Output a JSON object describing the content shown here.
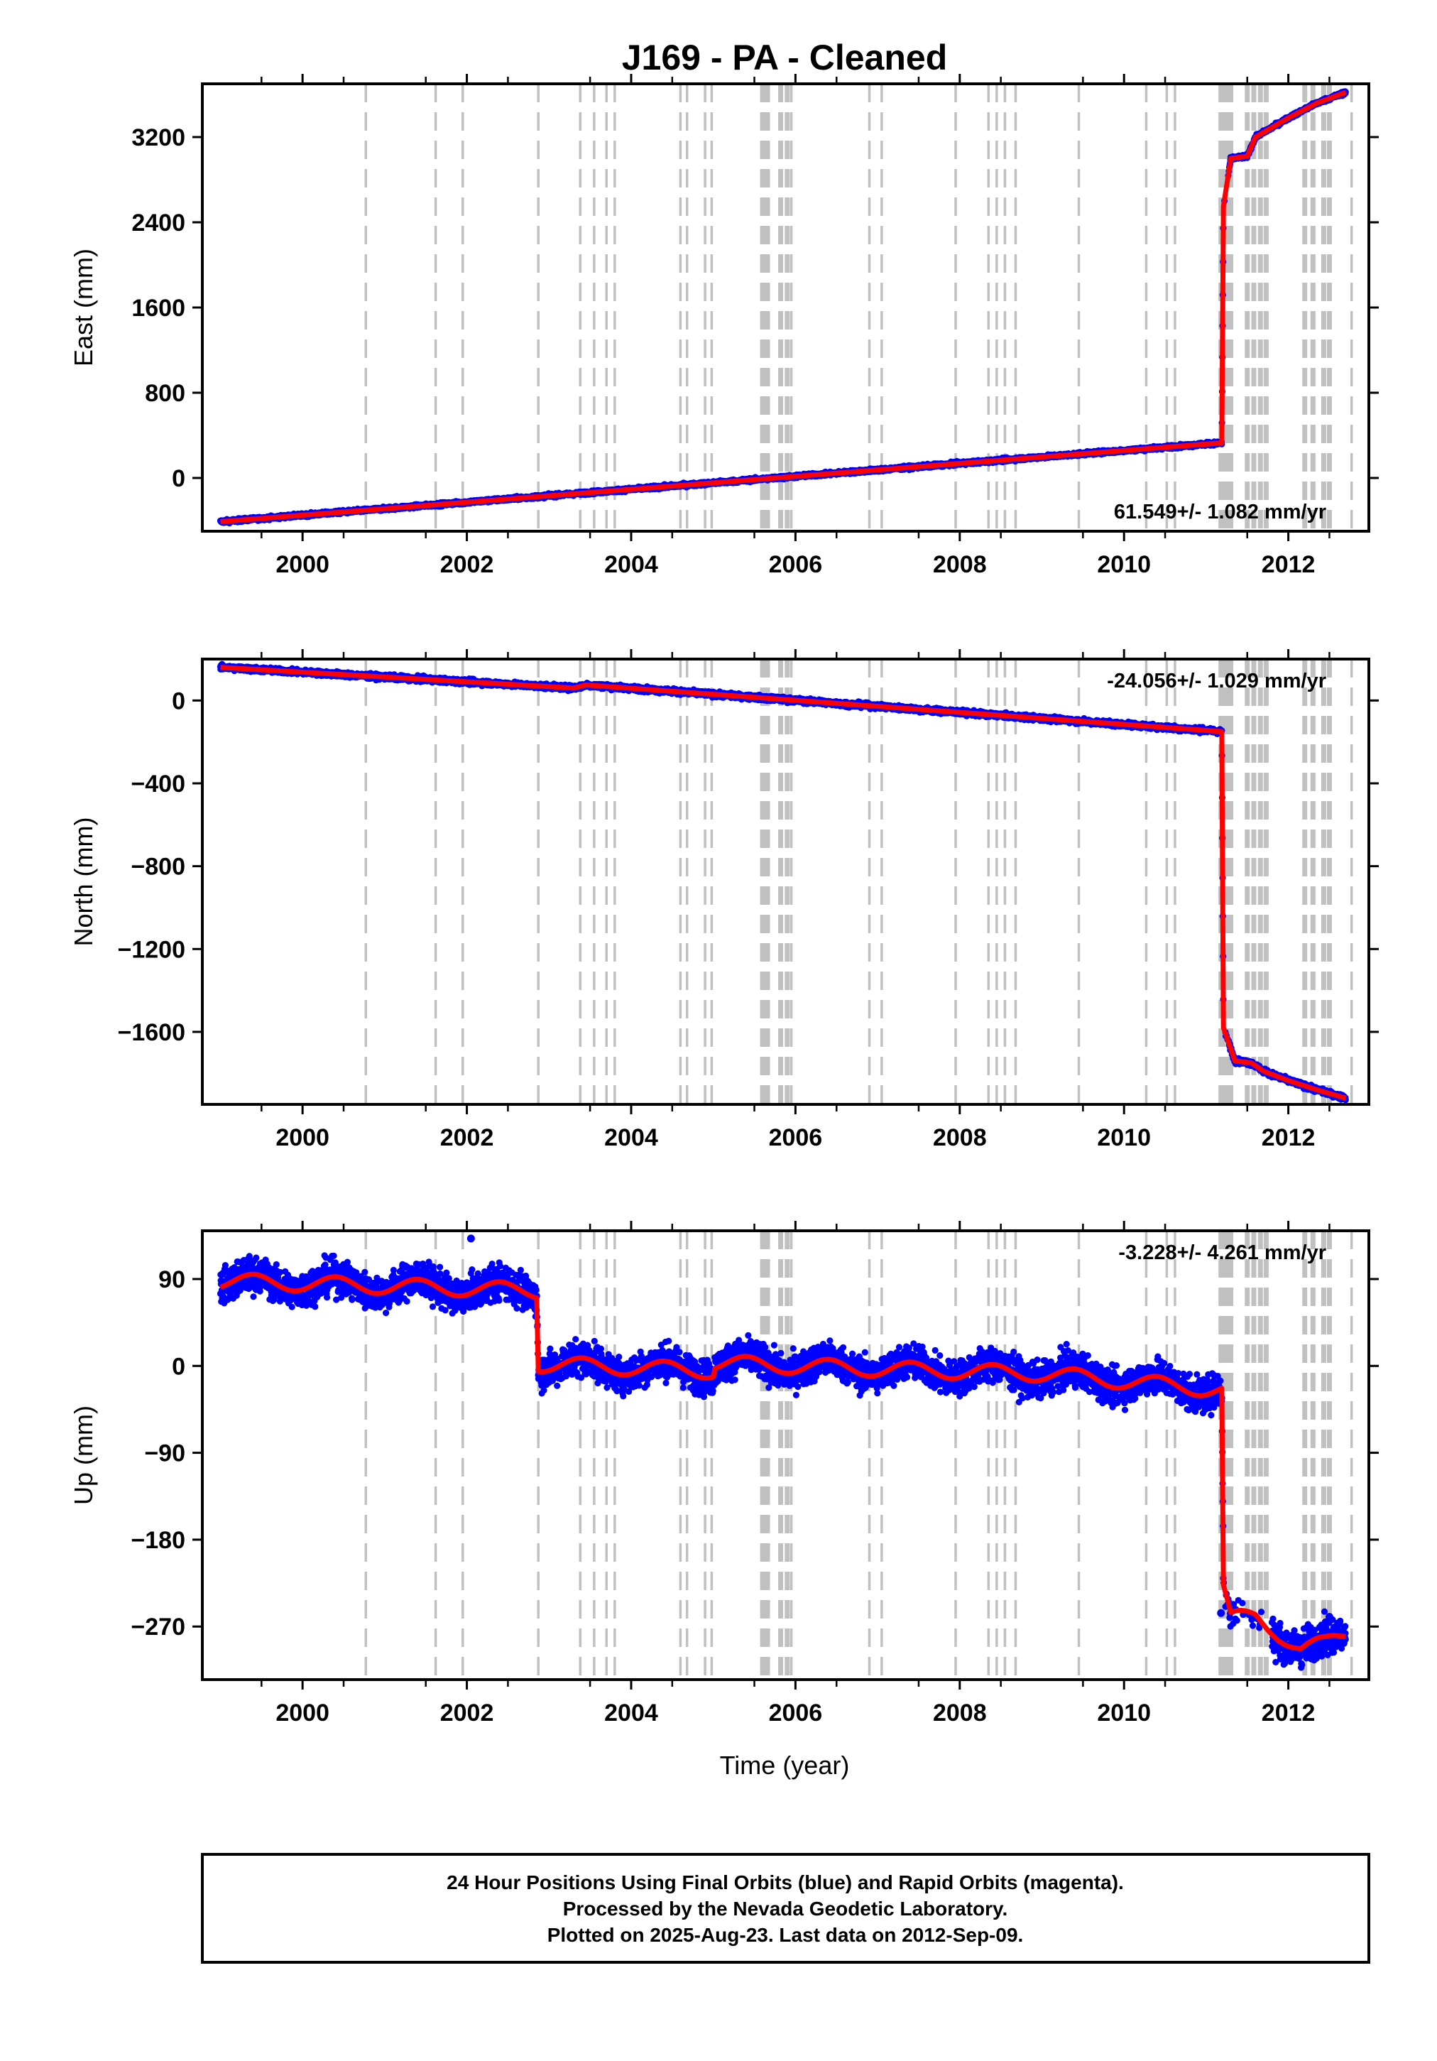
{
  "title": "J169  - PA - Cleaned",
  "xlabel": "Time (year)",
  "footer": {
    "line1": "24 Hour Positions Using Final Orbits (blue) and Rapid Orbits (magenta).",
    "line2": "Processed by the Nevada Geodetic Laboratory.",
    "line3": "Plotted on 2025-Aug-23. Last data on 2012-Sep-09."
  },
  "colors": {
    "data": "#0000ff",
    "model": "#ff0000",
    "steps": "#c0c0c0",
    "frame": "#000000"
  },
  "chart_data": [
    {
      "type": "scatter",
      "panel": "east",
      "ylabel": "East (mm)",
      "xlim": [
        1998.78,
        2012.98
      ],
      "ylim": [
        -500,
        3700
      ],
      "yticks": [
        0,
        800,
        1600,
        2400,
        3200
      ],
      "xticks": [
        2000,
        2002,
        2004,
        2006,
        2008,
        2010,
        2012
      ],
      "rate_label": "61.549+/- 1.082 mm/yr",
      "rate_placement": "bottom-right",
      "noise_mm": 8,
      "model": [
        [
          1999.0,
          -410
        ],
        [
          2011.19,
          330
        ],
        [
          2011.21,
          2550
        ],
        [
          2011.3,
          3000
        ],
        [
          2011.5,
          3020
        ],
        [
          2011.6,
          3200
        ],
        [
          2012.0,
          3380
        ],
        [
          2012.35,
          3520
        ],
        [
          2012.7,
          3620
        ]
      ],
      "trend": 61.549,
      "trend_uncertainty": 1.082
    },
    {
      "type": "scatter",
      "panel": "north",
      "ylabel": "North (mm)",
      "xlim": [
        1998.78,
        2012.98
      ],
      "ylim": [
        -1950,
        200
      ],
      "yticks": [
        0,
        -400,
        -800,
        -1200,
        -1600
      ],
      "xticks": [
        2000,
        2002,
        2004,
        2006,
        2008,
        2010,
        2012
      ],
      "rate_label": "-24.056+/- 1.029 mm/yr",
      "rate_placement": "top-right",
      "noise_mm": 6,
      "model": [
        [
          1999.0,
          160
        ],
        [
          2003.3,
          60
        ],
        [
          2003.45,
          75
        ],
        [
          2011.19,
          -150
        ],
        [
          2011.21,
          -1580
        ],
        [
          2011.35,
          -1740
        ],
        [
          2011.55,
          -1750
        ],
        [
          2011.7,
          -1790
        ],
        [
          2012.0,
          -1835
        ],
        [
          2012.35,
          -1880
        ],
        [
          2012.7,
          -1920
        ]
      ],
      "trend": -24.056,
      "trend_uncertainty": 1.029
    },
    {
      "type": "scatter",
      "panel": "up",
      "ylabel": "Up (mm)",
      "xlim": [
        1998.78,
        2012.98
      ],
      "ylim": [
        -325,
        140
      ],
      "yticks": [
        90,
        0,
        -90,
        -180,
        -270
      ],
      "xticks": [
        2000,
        2002,
        2004,
        2006,
        2008,
        2010,
        2012
      ],
      "rate_label": "-3.228+/- 4.261 mm/yr",
      "rate_placement": "top-right",
      "noise_mm": 9,
      "seasonal_amplitude_mm": 8,
      "model": [
        [
          1999.0,
          88
        ],
        [
          2002.85,
          78
        ],
        [
          2002.87,
          2
        ],
        [
          2003.5,
          0
        ],
        [
          2005.0,
          -5
        ],
        [
          2005.02,
          3
        ],
        [
          2007.0,
          -3
        ],
        [
          2009.0,
          -8
        ],
        [
          2011.19,
          -25
        ],
        [
          2011.21,
          -230
        ],
        [
          2011.3,
          -262
        ],
        [
          2011.6,
          -260
        ],
        [
          2011.85,
          -275
        ],
        [
          2012.15,
          -293
        ],
        [
          2012.45,
          -288
        ],
        [
          2012.7,
          -278
        ]
      ],
      "outliers": [
        [
          2002.05,
          132
        ],
        [
          2011.18,
          -256
        ],
        [
          2012.5,
          -260
        ]
      ],
      "trend": -3.228,
      "trend_uncertainty": 4.261
    }
  ],
  "step_epochs": {
    "dashed": [
      2000.77,
      2001.62,
      2001.95,
      2002.87,
      2003.38,
      2003.55,
      2003.7,
      2003.8,
      2004.6,
      2004.68,
      2004.9,
      2004.98,
      2005.67,
      2005.95,
      2006.9,
      2007.05,
      2007.95,
      2008.35,
      2008.45,
      2008.55,
      2008.68,
      2009.45,
      2010.27,
      2010.52,
      2010.62,
      2012.77
    ],
    "thick": [
      2005.6,
      2005.66,
      2005.82,
      2005.9,
      2011.18,
      2011.22,
      2011.26,
      2011.3,
      2011.5,
      2011.58,
      2011.66,
      2011.73,
      2012.2,
      2012.3,
      2012.43,
      2012.5
    ]
  }
}
